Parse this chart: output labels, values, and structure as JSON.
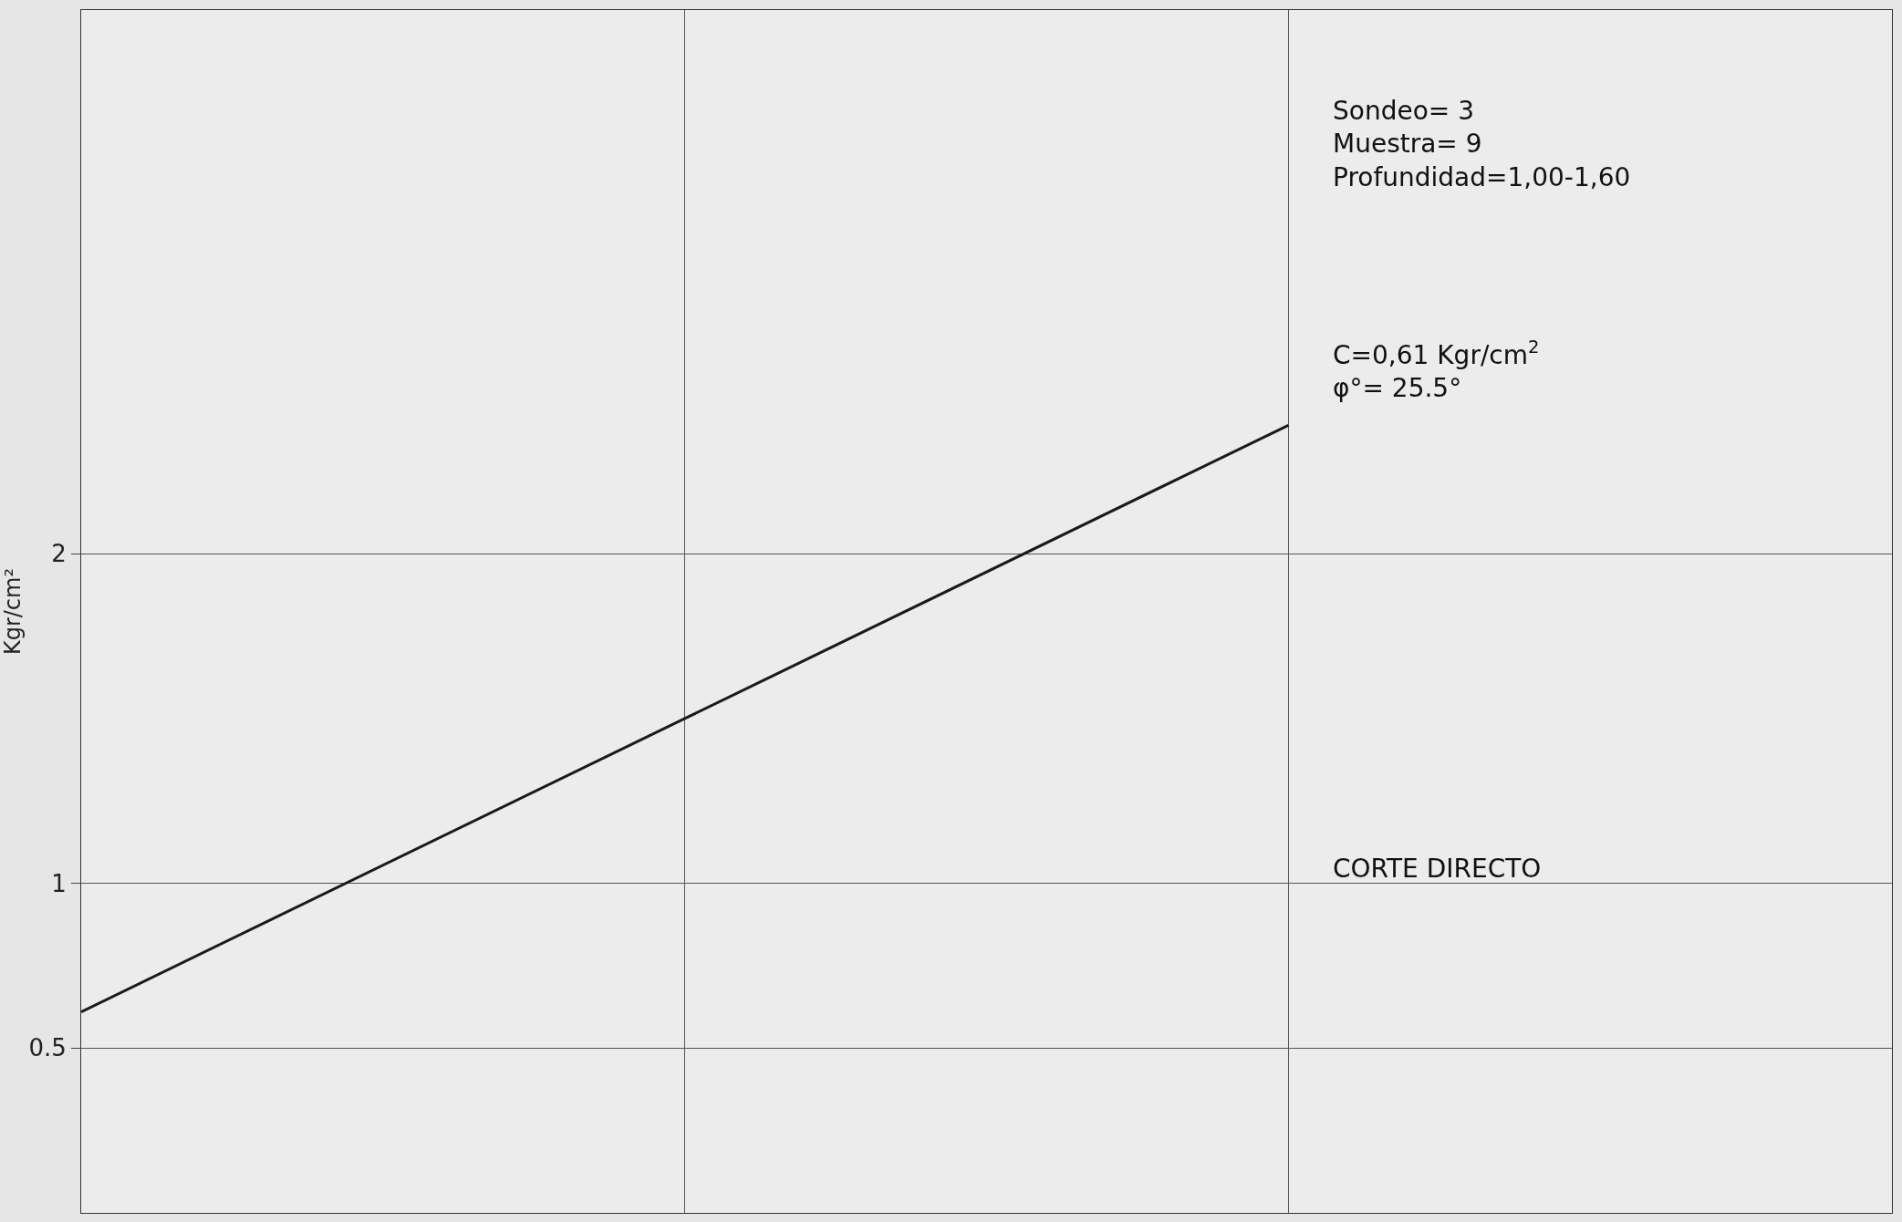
{
  "chart_data": {
    "type": "line",
    "categories": [
      null,
      null,
      null,
      null
    ],
    "series": [
      {
        "color": "#1a1a1a",
        "values": [
          0.61,
          1.5,
          2.39,
          null
        ]
      }
    ],
    "ylabel": "Kgr/cm²",
    "ylim": [
      0,
      3.65
    ],
    "yticks": [
      0.5,
      1,
      2
    ],
    "tick_labels": "y",
    "grid": true,
    "marker": "none",
    "line_style": "solid",
    "annotations": [
      "Sondeo= 3\nMuestra= 9\nProfundidad=1,00-1,60",
      "C=0,61 Kgr/cm$^{2}$\nφ°= 25.5°",
      "CORTE DIRECTO"
    ]
  }
}
